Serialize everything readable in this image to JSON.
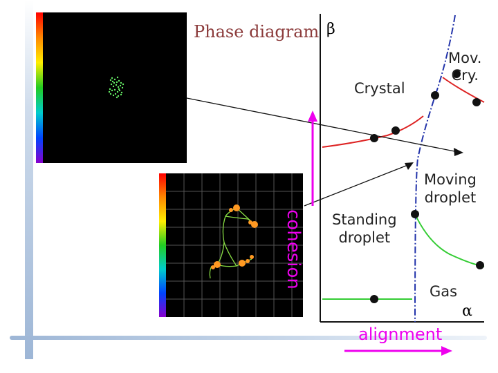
{
  "title": "Phase diagram",
  "axes": {
    "beta": "β",
    "alpha": "α",
    "vertical_label": "cohesion",
    "horizontal_label": "alignment"
  },
  "regions": {
    "crystal": "Crystal",
    "moving_crystal_line1": "Mov.",
    "moving_crystal_line2": "Cry.",
    "moving_droplet_line1": "Moving",
    "moving_droplet_line2": "droplet",
    "standing_droplet_line1": "Standing",
    "standing_droplet_line2": "droplet",
    "gas": "Gas"
  },
  "colors": {
    "title": "#8b3a3a",
    "axis_arrows": "#ee00ee",
    "crystal_boundary": "#dd2222",
    "gas_boundary": "#33cc33",
    "alignment_transition": "#2233aa"
  },
  "insets": [
    {
      "name": "crystal-simulation",
      "content": "green particle cluster"
    },
    {
      "name": "droplet-simulation",
      "content": "orange droplets with green trajectories"
    }
  ]
}
